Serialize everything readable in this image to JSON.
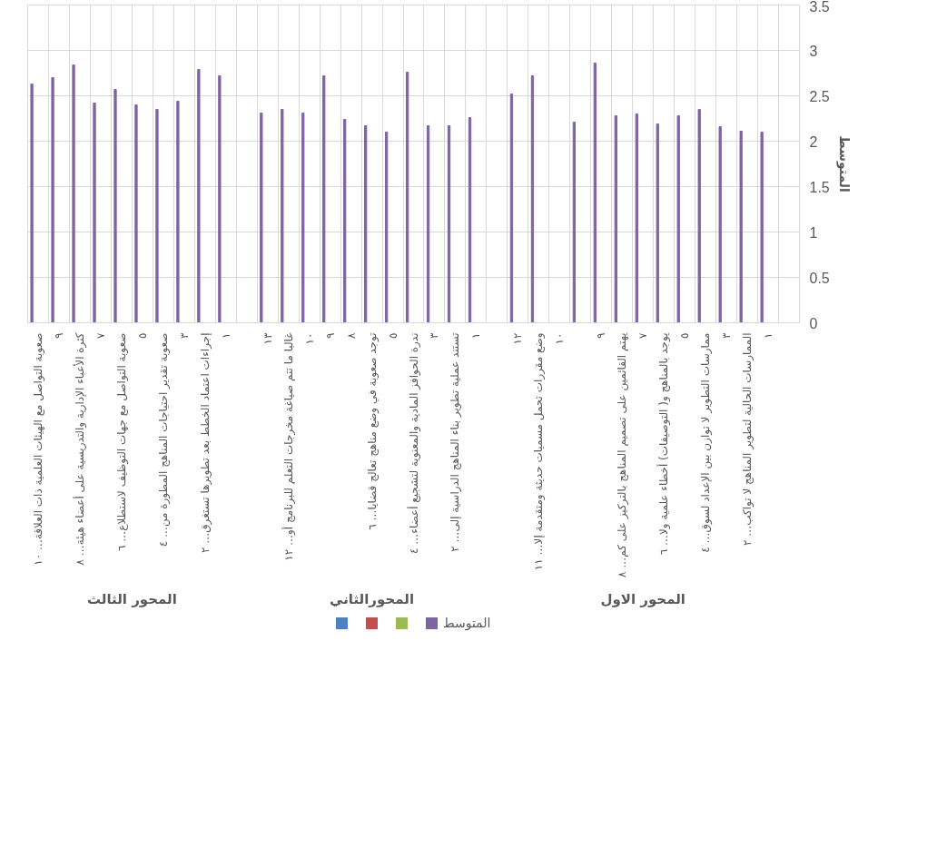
{
  "chart_data": {
    "type": "bar",
    "ylabel": "المتوسط",
    "legend": "bottom",
    "grid": true,
    "categories": [
      "صعوبة التواصل مع الهيئات العلمية ذات العلاقة… ١٠",
      "٩",
      "كثرة الأعباء الإدارية والتدريسية على أعضاء هيئة… ٨",
      "٧",
      "صعوبة التواصل مع جهات التوظيف لاستطلاع… ٦",
      "٥",
      "صعوبة تقدير احتياجات المناهج المطورة من… ٤",
      "٣",
      "إجراءات اعتماد الخطط بعد تطويرها تستغرق… ٢",
      "١",
      null,
      "١٣",
      "غالبا ما تتم صياغة مخرجات التعلم للبرنامج أو… ١٢",
      "١٠",
      "٩",
      "٨",
      "توجد صعوبة في وضع مناهج تعالج قضايا… ٦",
      "٥",
      "ندرة الحوافز المادية والمعنوية لتشجيع أعضاء… ٤",
      "٣",
      "تستند عملية تطوير بناء المناهج الدراسية إلى… ٢",
      "١",
      null,
      "١٢",
      "وضع مقررات تحمل مسميات حديثة ومتقدمة إلا… ١١",
      "١٠",
      null,
      "٩",
      "يهتم القائمين على تصميم المناهج بالتركيز على كم… ٨",
      "٧",
      "يوجد بالمناهج و( التوصيفات) أخطاء علمية ولا… ٦",
      "٥",
      "ممارسات التطوير لا توازن بين الإعداد لسوق… ٤",
      "٣",
      "الممارسات الحالية لتطوير المناهج لا تواكب… ٢",
      "١",
      null
    ],
    "series": [
      {
        "name": "المتوسط",
        "color": "#8064a2",
        "values": [
          2.63,
          2.7,
          2.84,
          2.42,
          2.57,
          2.4,
          2.35,
          2.44,
          2.79,
          2.72,
          null,
          2.31,
          2.35,
          2.31,
          2.72,
          2.24,
          2.17,
          2.1,
          2.76,
          2.17,
          2.17,
          2.26,
          null,
          2.52,
          2.72,
          null,
          2.21,
          2.86,
          2.28,
          2.3,
          2.19,
          2.28,
          2.35,
          2.16,
          2.11,
          2.1,
          null
        ]
      },
      {
        "color": "#9bbb59",
        "values": [
          null,
          null,
          null,
          null,
          null,
          null,
          null,
          null,
          null,
          null,
          null,
          null,
          null,
          null,
          null,
          null,
          null,
          null,
          null,
          null,
          null,
          null,
          null,
          null,
          null,
          null,
          null,
          null,
          null,
          null,
          null,
          null,
          null,
          null,
          null,
          null,
          null
        ]
      },
      {
        "color": "#c0504d",
        "values": [
          null,
          null,
          null,
          null,
          null,
          null,
          null,
          null,
          null,
          null,
          null,
          null,
          null,
          null,
          null,
          null,
          null,
          null,
          null,
          null,
          null,
          null,
          null,
          null,
          null,
          null,
          null,
          null,
          null,
          null,
          null,
          null,
          null,
          null,
          null,
          null,
          null
        ]
      },
      {
        "color": "#4f81bd",
        "values": [
          null,
          null,
          null,
          null,
          null,
          null,
          null,
          null,
          null,
          null,
          null,
          null,
          null,
          null,
          null,
          null,
          null,
          null,
          null,
          null,
          null,
          null,
          null,
          null,
          null,
          null,
          null,
          null,
          null,
          null,
          null,
          null,
          null,
          null,
          null,
          null,
          null
        ]
      }
    ],
    "ylim": [
      0,
      3.5
    ],
    "yticks": [
      0,
      0.5,
      1,
      1.5,
      2,
      2.5,
      3,
      3.5
    ],
    "annotations": [
      "المحور الثالث",
      "المحورالثاني",
      "المحور الاول"
    ]
  }
}
